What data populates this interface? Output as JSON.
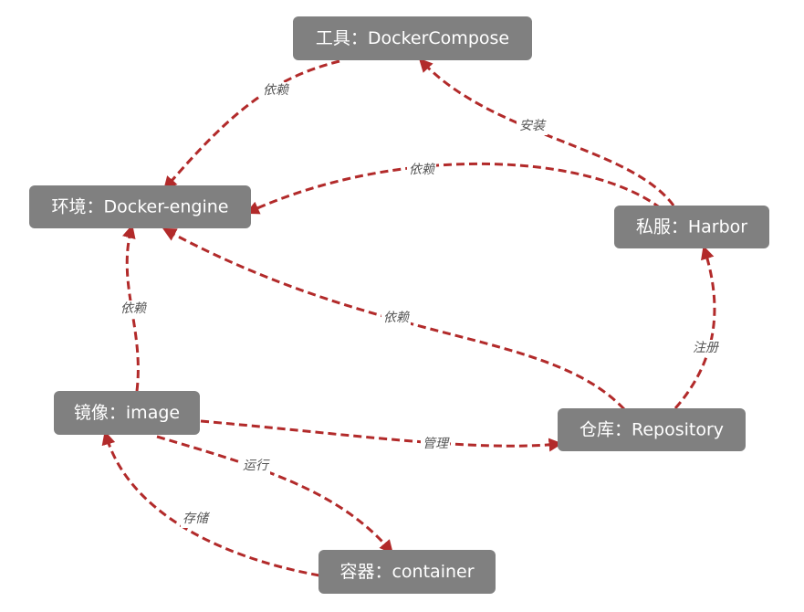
{
  "colors": {
    "node_fill": "#808080",
    "node_text": "#ffffff",
    "edge": "#b22a2a",
    "edge_label": "#555555"
  },
  "nodes": {
    "compose": "工具：DockerCompose",
    "engine": "环境：Docker-engine",
    "harbor": "私服：Harbor",
    "image": "镜像：image",
    "repository": "仓库：Repository",
    "container": "容器：container"
  },
  "edges": {
    "compose_to_engine": "依赖",
    "harbor_to_compose": "安装",
    "harbor_to_engine": "依赖",
    "image_to_engine": "依赖",
    "repository_to_engine": "依赖",
    "repository_to_harbor": "注册",
    "image_to_repository": "管理",
    "image_to_container": "运行",
    "container_to_image": "存储"
  }
}
